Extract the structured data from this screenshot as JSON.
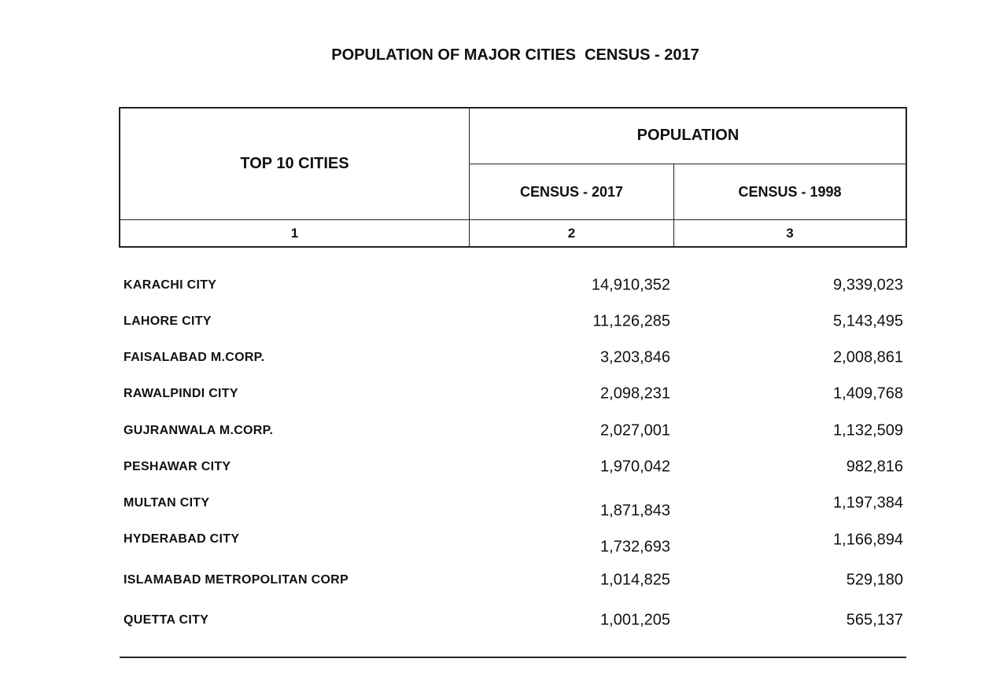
{
  "title": "POPULATION OF MAJOR CITIES  CENSUS - 2017",
  "header": {
    "col1": "TOP 10 CITIES",
    "group": "POPULATION",
    "col2": "CENSUS - 2017",
    "col3": "CENSUS - 1998",
    "num1": "1",
    "num2": "2",
    "num3": "3"
  },
  "rows": [
    {
      "city": "KARACHI CITY",
      "c2017": "14,910,352",
      "c1998": "9,339,023"
    },
    {
      "city": "LAHORE CITY",
      "c2017": "11,126,285",
      "c1998": "5,143,495"
    },
    {
      "city": "FAISALABAD M.CORP.",
      "c2017": "3,203,846",
      "c1998": "2,008,861"
    },
    {
      "city": "RAWALPINDI CITY",
      "c2017": "2,098,231",
      "c1998": "1,409,768"
    },
    {
      "city": "GUJRANWALA M.CORP.",
      "c2017": "2,027,001",
      "c1998": "1,132,509"
    },
    {
      "city": "PESHAWAR CITY",
      "c2017": "1,970,042",
      "c1998": "982,816"
    },
    {
      "city": "MULTAN CITY",
      "c2017": "1,871,843",
      "c1998": "1,197,384"
    },
    {
      "city": "HYDERABAD CITY",
      "c2017": "1,732,693",
      "c1998": "1,166,894"
    },
    {
      "city": "ISLAMABAD METROPOLITAN CORP",
      "c2017": "1,014,825",
      "c1998": "529,180"
    },
    {
      "city": "QUETTA CITY",
      "c2017": "1,001,205",
      "c1998": "565,137"
    }
  ]
}
